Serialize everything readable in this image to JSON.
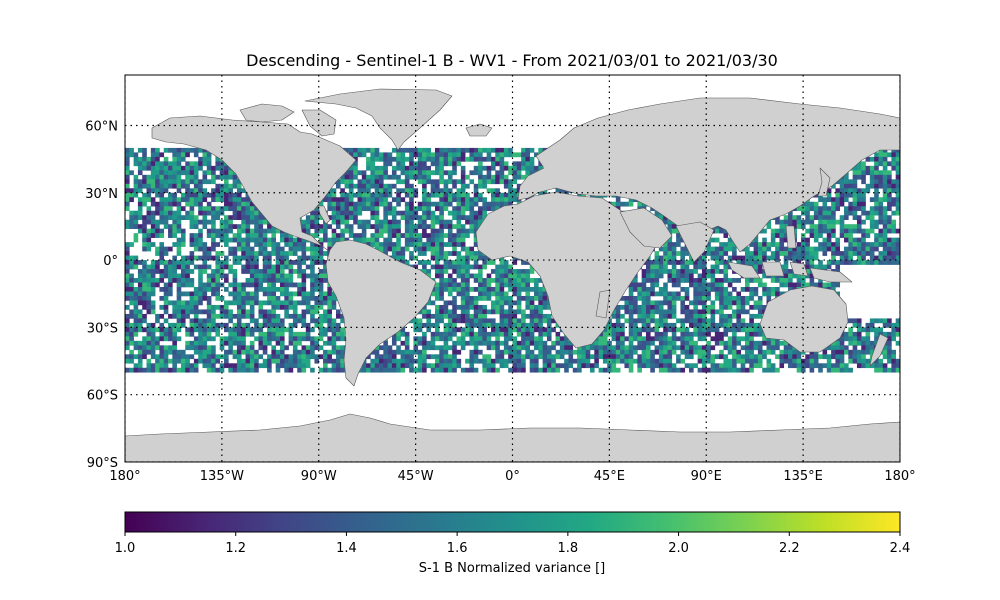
{
  "title": "Descending - Sentinel-1 B - WV1 - From 2021/03/01 to 2021/03/30",
  "map": {
    "projection": "equirectangular",
    "lon_range": [
      -180,
      180
    ],
    "lat_range": [
      -90,
      90
    ],
    "land_color": "#d0d0d0",
    "coast_color": "#555555",
    "gridlines": "dotted",
    "lat_ticks": [
      {
        "lat": 60,
        "label": "60°N"
      },
      {
        "lat": 30,
        "label": "30°N"
      },
      {
        "lat": 0,
        "label": "0°"
      },
      {
        "lat": -30,
        "label": "30°S"
      },
      {
        "lat": -60,
        "label": "60°S"
      },
      {
        "lat": -90,
        "label": "90°S"
      }
    ],
    "lon_ticks": [
      {
        "lon": -180,
        "label": "180°"
      },
      {
        "lon": -135,
        "label": "135°W"
      },
      {
        "lon": -90,
        "label": "90°W"
      },
      {
        "lon": -45,
        "label": "45°W"
      },
      {
        "lon": 0,
        "label": "0°"
      },
      {
        "lon": 45,
        "label": "45°E"
      },
      {
        "lon": 90,
        "label": "90°E"
      },
      {
        "lon": 135,
        "label": "135°E"
      },
      {
        "lon": 180,
        "label": "180°"
      }
    ]
  },
  "data_coverage": {
    "lat_range": [
      -50,
      50
    ],
    "cell_deg": 2
  },
  "colorbar": {
    "label": "S-1 B Normalized variance []",
    "colormap": "viridis",
    "range": [
      1.0,
      2.4
    ],
    "ticks": [
      "1.0",
      "1.2",
      "1.4",
      "1.6",
      "1.8",
      "2.0",
      "2.2",
      "2.4"
    ]
  }
}
